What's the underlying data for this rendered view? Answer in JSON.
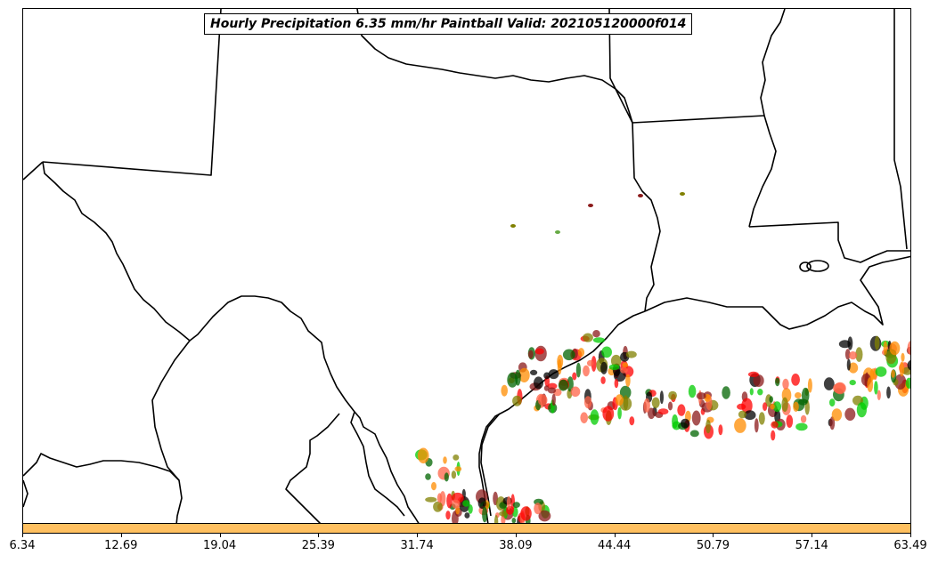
{
  "map": {
    "title": "Hourly Precipitation 6.35 mm/hr Paintball Valid: 202105120000f014",
    "region": "Texas / Louisiana / Gulf of Mexico",
    "colors": {
      "background": "#ffffff",
      "borders": "#000000",
      "colorbar_fill": "#ffc060"
    },
    "paintball_member_colors": [
      "#8b1a1a",
      "#ff8c00",
      "#00cc00",
      "#ff0000",
      "#808000",
      "#006400",
      "#000000",
      "#ff6347"
    ]
  },
  "colorbar": {
    "ticks": [
      "6.34",
      "12.69",
      "19.04",
      "25.39",
      "31.74",
      "38.09",
      "44.44",
      "50.79",
      "57.14",
      "63.49"
    ]
  }
}
